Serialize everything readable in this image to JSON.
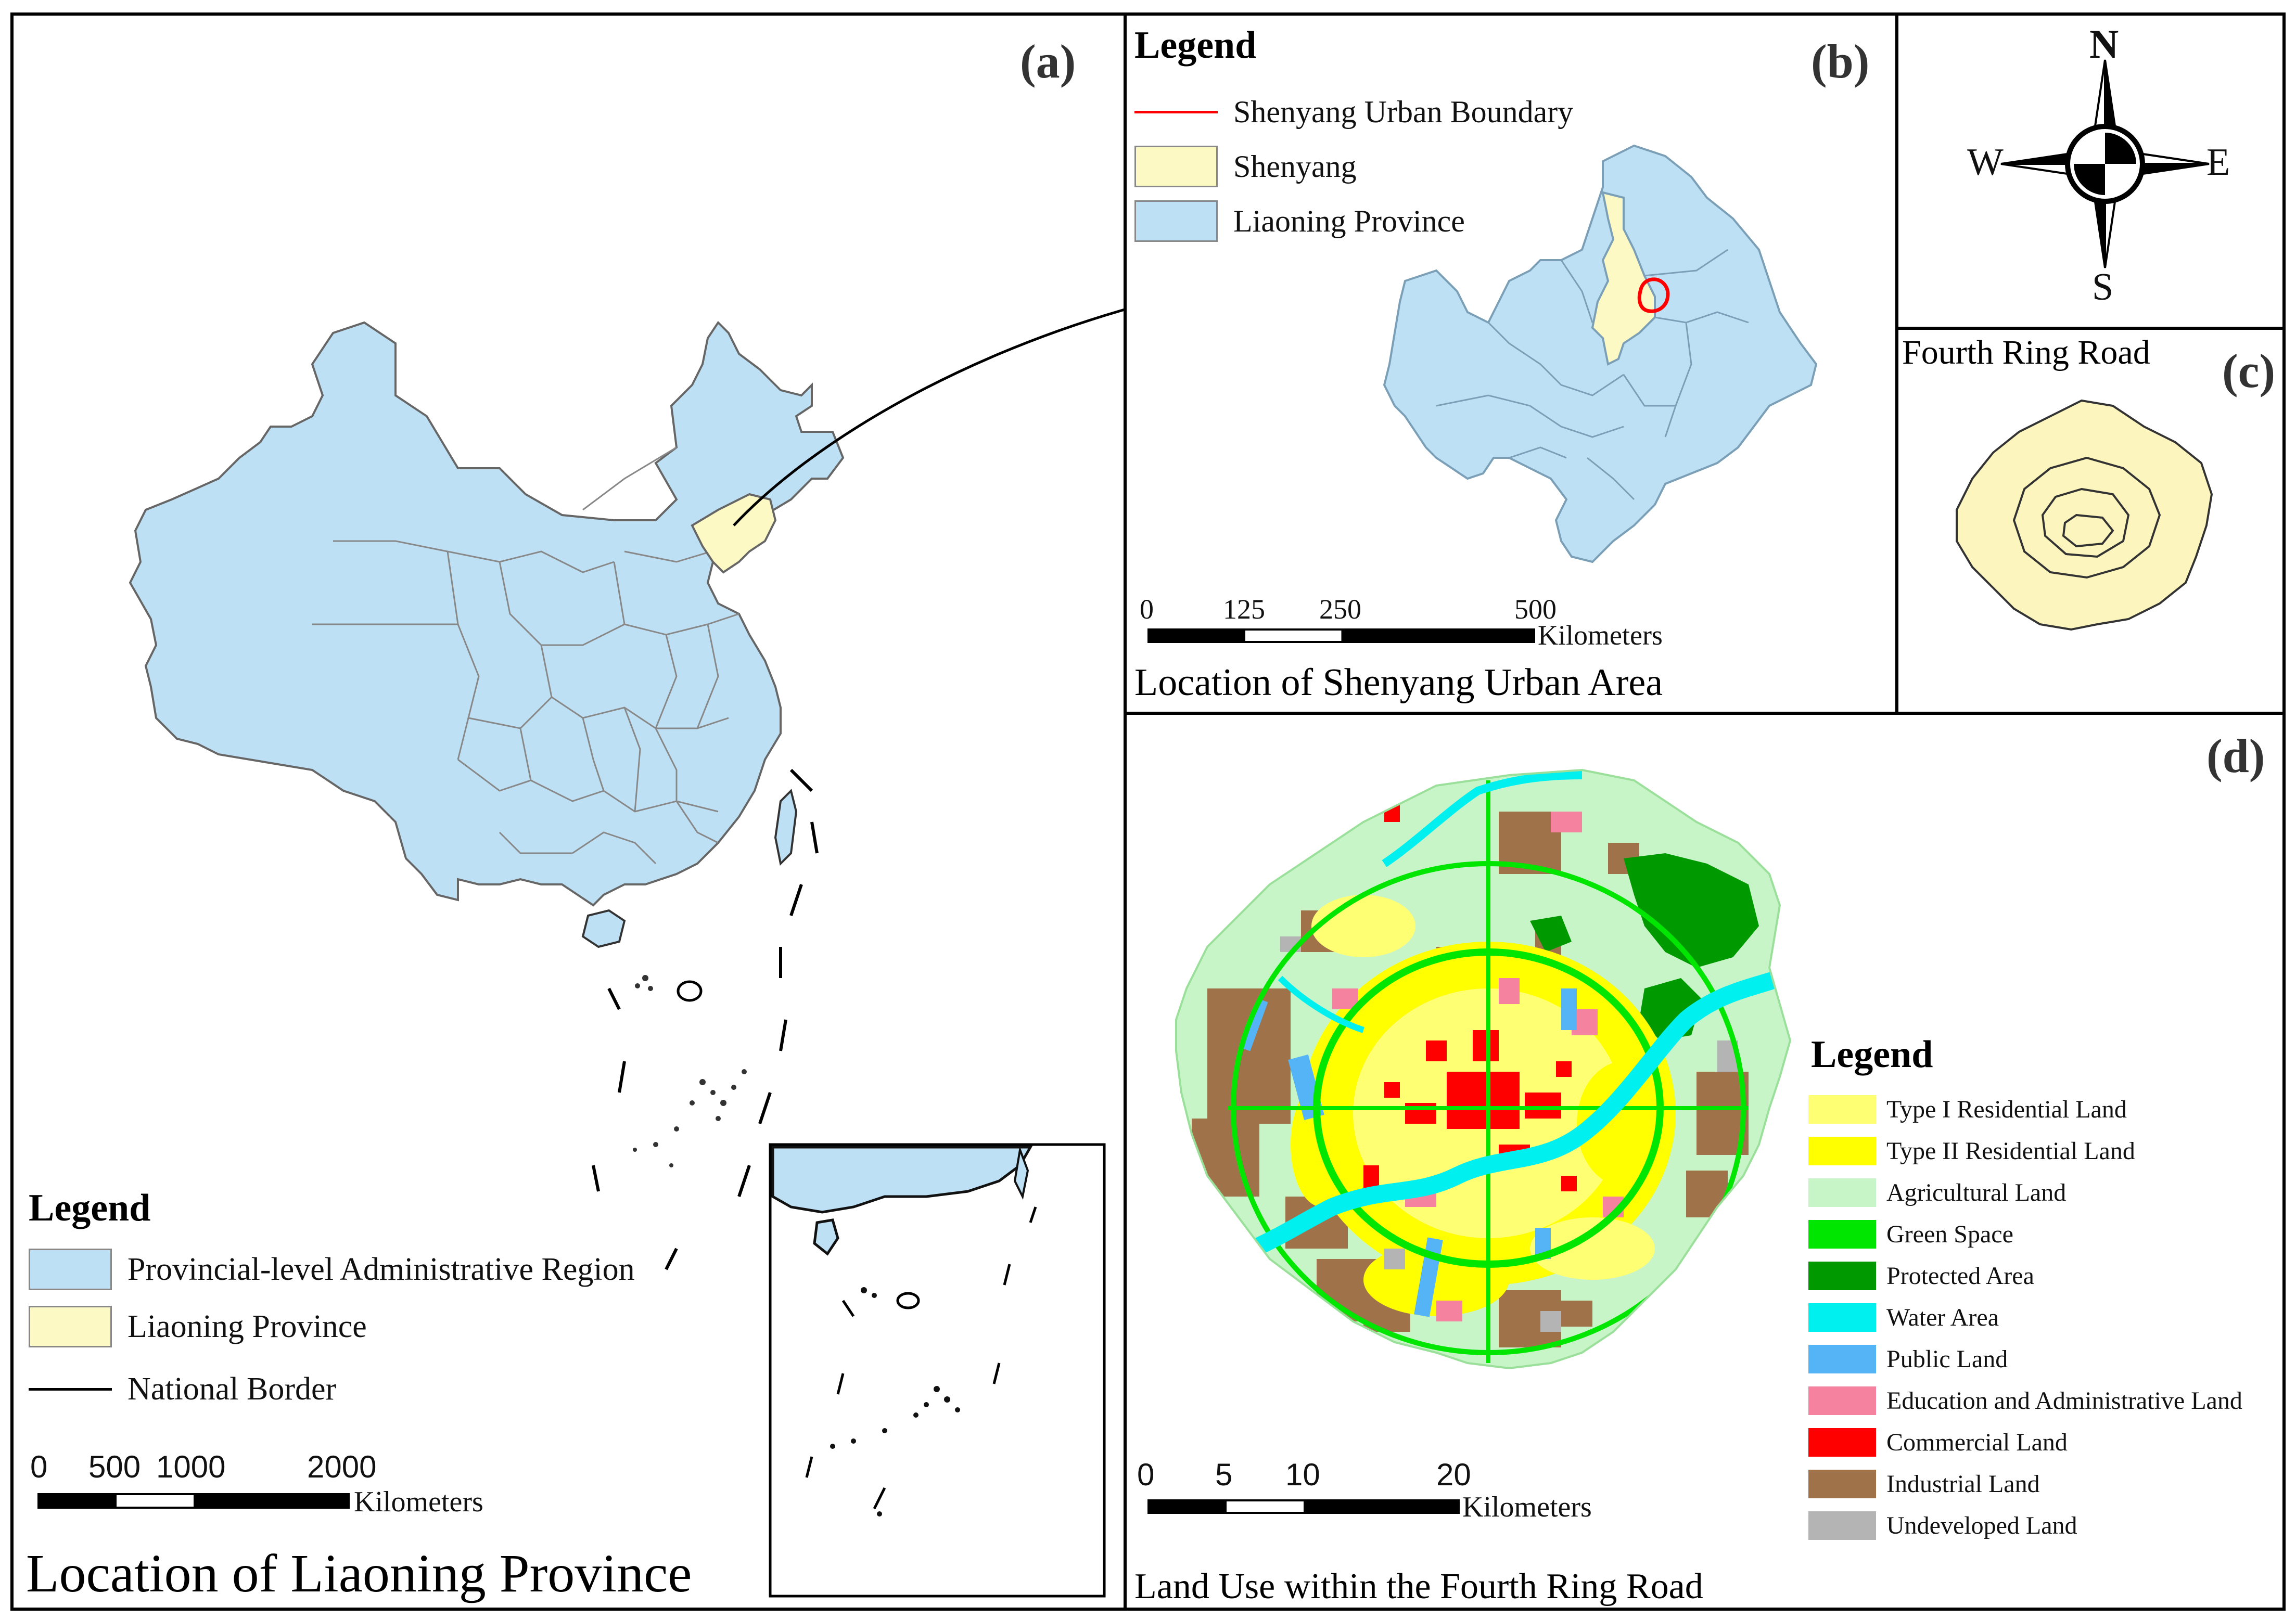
{
  "panel_a": {
    "tag": "(a)",
    "title": "Location of Liaoning Province",
    "legend": {
      "title": "Legend",
      "items": [
        {
          "label": "Provincial-level Administrative Region",
          "color": "#bee0f4",
          "kind": "fill"
        },
        {
          "label": "Liaoning Province",
          "color": "#fdf9c4",
          "kind": "fill"
        },
        {
          "label": "National Border",
          "color": "#000000",
          "kind": "line"
        }
      ]
    },
    "scale": {
      "ticks": [
        "0",
        "500",
        "1000",
        "2000"
      ],
      "unit": "Kilometers"
    }
  },
  "panel_b": {
    "tag": "(b)",
    "title": "Location of Shenyang Urban Area",
    "legend": {
      "title": "Legend",
      "items": [
        {
          "label": "Shenyang Urban Boundary",
          "color": "#ff0000",
          "kind": "line"
        },
        {
          "label": "Shenyang",
          "color": "#fdf9c4",
          "kind": "fill"
        },
        {
          "label": "Liaoning Province",
          "color": "#bee0f4",
          "kind": "fill"
        }
      ]
    },
    "scale": {
      "ticks": [
        "0",
        "125",
        "250",
        "500"
      ],
      "unit": "Kilometers"
    }
  },
  "compass": {
    "n": "N",
    "s": "S",
    "e": "E",
    "w": "W"
  },
  "panel_c": {
    "tag": "(c)",
    "title": "Fourth Ring Road"
  },
  "panel_d": {
    "tag": "(d)",
    "title": "Land Use within the Fourth Ring Road",
    "legend": {
      "title": "Legend",
      "items": [
        {
          "label": "Type I Residential Land",
          "color": "#ffff73"
        },
        {
          "label": "Type II Residential Land",
          "color": "#ffff00"
        },
        {
          "label": "Agricultural Land",
          "color": "#c8f5c8"
        },
        {
          "label": "Green Space",
          "color": "#00e600"
        },
        {
          "label": "Protected Area",
          "color": "#009900"
        },
        {
          "label": "Water Area",
          "color": "#00f0f0"
        },
        {
          "label": "Public Land",
          "color": "#55b4f5"
        },
        {
          "label": "Education and Administrative Land",
          "color": "#f5829e"
        },
        {
          "label": "Commercial Land",
          "color": "#ff0000"
        },
        {
          "label": "Industrial Land",
          "color": "#a0724a"
        },
        {
          "label": "Undeveloped Land",
          "color": "#b4b4b4"
        }
      ]
    },
    "scale": {
      "ticks": [
        "0",
        "5",
        "10",
        "20"
      ],
      "unit": "Kilometers"
    }
  }
}
